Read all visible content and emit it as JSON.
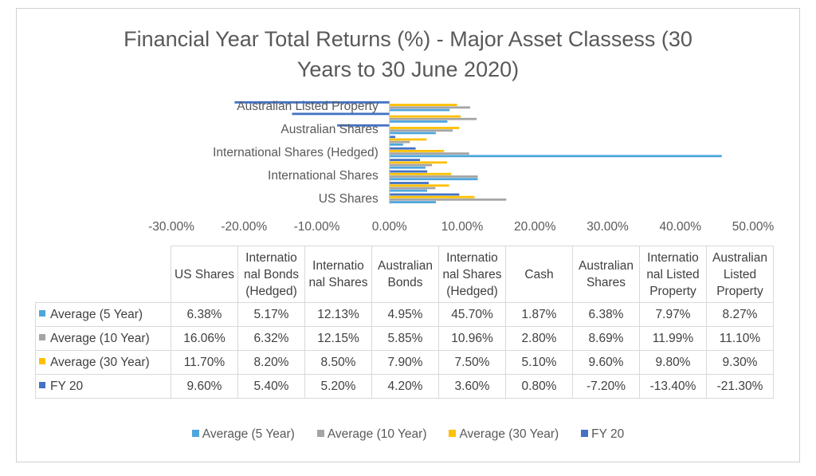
{
  "chart_data": {
    "type": "bar",
    "orientation": "horizontal",
    "title": "Financial Year Total Returns (%) - Major Asset Classess (30 Years to 30 June 2020)",
    "title_lines": [
      "Financial Year Total Returns (%) - Major Asset Classess (30",
      "Years to 30 June 2020)"
    ],
    "categories": [
      "US Shares",
      "Internatio nal Bonds (Hedged)",
      "Internatio nal Shares",
      "Australian Bonds",
      "Internatio nal Shares (Hedged)",
      "Cash",
      "Australian Shares",
      "Internatio nal Listed Property",
      "Australian Listed Property"
    ],
    "category_header_lines": [
      [
        "US Shares"
      ],
      [
        "Internatio",
        "nal Bonds",
        "(Hedged)"
      ],
      [
        "Internatio",
        "nal Shares"
      ],
      [
        "Australian",
        "Bonds"
      ],
      [
        "Internatio",
        "nal Shares",
        "(Hedged)"
      ],
      [
        "Cash"
      ],
      [
        "Australian",
        "Shares"
      ],
      [
        "Internatio",
        "nal Listed",
        "Property"
      ],
      [
        "Australian",
        "Listed",
        "Property"
      ]
    ],
    "axis_category_labels": [
      "US Shares",
      "International Shares",
      "International Shares (Hedged)",
      "Australian Shares",
      "Australian Listed Property"
    ],
    "series": [
      {
        "name": "Average (5 Year)",
        "color": "#4ea6dc",
        "values": [
          6.38,
          5.17,
          12.13,
          4.95,
          45.7,
          1.87,
          6.38,
          7.97,
          8.27
        ],
        "labels": [
          "6.38%",
          "5.17%",
          "12.13%",
          "4.95%",
          "45.70%",
          "1.87%",
          "6.38%",
          "7.97%",
          "8.27%"
        ]
      },
      {
        "name": "Average (10 Year)",
        "color": "#a5a5a5",
        "values": [
          16.06,
          6.32,
          12.15,
          5.85,
          10.96,
          2.8,
          8.69,
          11.99,
          11.1
        ],
        "labels": [
          "16.06%",
          "6.32%",
          "12.15%",
          "5.85%",
          "10.96%",
          "2.80%",
          "8.69%",
          "11.99%",
          "11.10%"
        ]
      },
      {
        "name": "Average (30 Year)",
        "color": "#ffc000",
        "values": [
          11.7,
          8.2,
          8.5,
          7.9,
          7.5,
          5.1,
          9.6,
          9.8,
          9.3
        ],
        "labels": [
          "11.70%",
          "8.20%",
          "8.50%",
          "7.90%",
          "7.50%",
          "5.10%",
          "9.60%",
          "9.80%",
          "9.30%"
        ]
      },
      {
        "name": "FY 20",
        "color": "#4472c4",
        "values": [
          9.6,
          5.4,
          5.2,
          4.2,
          3.6,
          0.8,
          -7.2,
          -13.4,
          -21.3
        ],
        "labels": [
          "9.60%",
          "5.40%",
          "5.20%",
          "4.20%",
          "3.60%",
          "0.80%",
          "-7.20%",
          "-13.40%",
          "-21.30%"
        ]
      }
    ],
    "x_ticks": [
      -30,
      -20,
      -10,
      0,
      10,
      20,
      30,
      40,
      50
    ],
    "x_tick_labels": [
      "-30.00%",
      "-20.00%",
      "-10.00%",
      "0.00%",
      "10.00%",
      "20.00%",
      "30.00%",
      "40.00%",
      "50.00%"
    ],
    "xlim": [
      -30,
      50
    ],
    "grid": false,
    "legend_position": "bottom",
    "data_table": true
  }
}
